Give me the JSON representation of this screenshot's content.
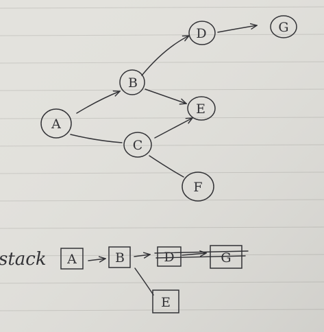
{
  "graph": {
    "nodes": [
      "A",
      "B",
      "C",
      "D",
      "E",
      "F",
      "G"
    ],
    "edges": [
      [
        "A",
        "B"
      ],
      [
        "A",
        "C"
      ],
      [
        "B",
        "D"
      ],
      [
        "B",
        "E"
      ],
      [
        "C",
        "E"
      ],
      [
        "C",
        "F"
      ],
      [
        "D",
        "G"
      ]
    ]
  },
  "stack": {
    "label": "stack",
    "items": [
      "A",
      "B",
      "D",
      "G"
    ],
    "branch_item": "E"
  },
  "colors": {
    "ink": "#2f2f33",
    "paper": "#e3e2dd",
    "rule": "#c9c8c3"
  }
}
